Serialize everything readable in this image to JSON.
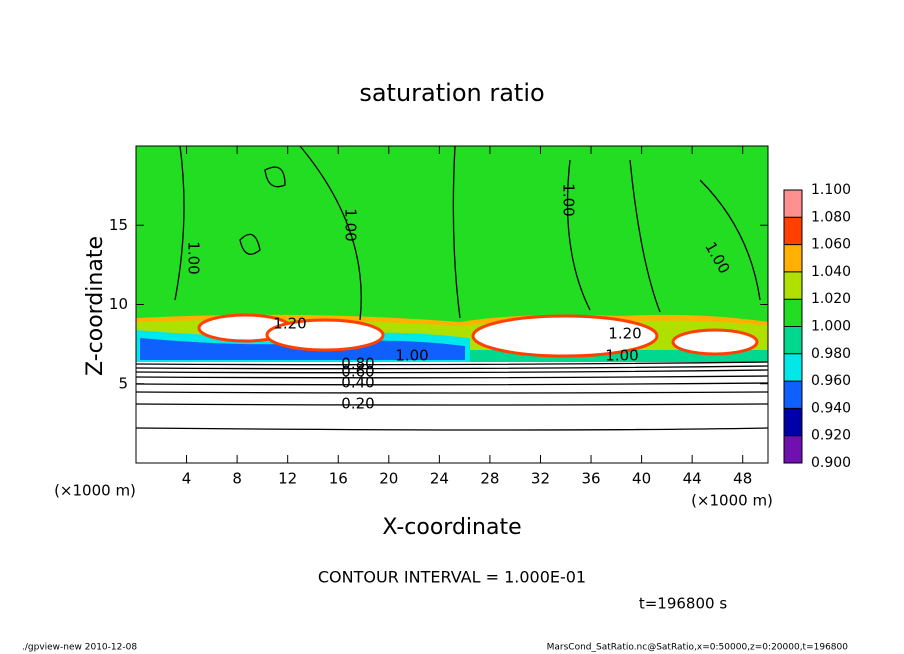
{
  "chart_data": {
    "type": "contour",
    "title": "saturation ratio",
    "xlabel": "X-coordinate",
    "ylabel": "Z-coordinate",
    "x_unit": "(×1000 m)",
    "xlim": [
      0,
      50
    ],
    "xticks": [
      4,
      8,
      12,
      16,
      20,
      24,
      28,
      32,
      36,
      40,
      44,
      48
    ],
    "ylim": [
      0,
      20
    ],
    "yticks": [
      5,
      10,
      15
    ],
    "colorbar": {
      "levels": [
        {
          "value": 0.9,
          "label": "0.900"
        },
        {
          "value": 0.92,
          "label": "0.920"
        },
        {
          "value": 0.94,
          "label": "0.940"
        },
        {
          "value": 0.96,
          "label": "0.960"
        },
        {
          "value": 0.98,
          "label": "0.980"
        },
        {
          "value": 1.0,
          "label": "1.000"
        },
        {
          "value": 1.02,
          "label": "1.020"
        },
        {
          "value": 1.04,
          "label": "1.040"
        },
        {
          "value": 1.06,
          "label": "1.060"
        },
        {
          "value": 1.08,
          "label": "1.080"
        },
        {
          "value": 1.1,
          "label": "1.100"
        }
      ],
      "colors": [
        "#7010b0",
        "#0000a8",
        "#1060ff",
        "#00e8e8",
        "#00d890",
        "#22dd22",
        "#b0e000",
        "#ffb000",
        "#ff4000",
        "#ff9090"
      ]
    },
    "contour_labels": [
      "1.00",
      "1.00",
      "1.00",
      "1.00",
      "1.20",
      "1.20",
      "1.00",
      "1.00",
      "0.80",
      "0.60",
      "0.40",
      "0.20"
    ],
    "contour_interval": "CONTOUR INTERVAL = 1.000E-01",
    "time": "t=196800 s"
  },
  "footer": {
    "left": "./gpview-new  2010-12-08",
    "right": "MarsCond_SatRatio.nc@SatRatio,x=0:50000,z=0:20000,t=196800"
  }
}
